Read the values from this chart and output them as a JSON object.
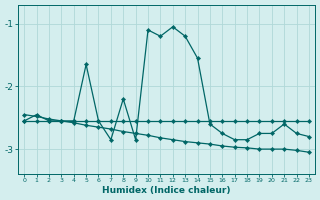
{
  "xlabel": "Humidex (Indice chaleur)",
  "background_color": "#d4eeee",
  "grid_color": "#b0d8d8",
  "line_color": "#006666",
  "xlim": [
    -0.5,
    23.5
  ],
  "ylim": [
    -3.4,
    -0.7
  ],
  "xticks": [
    0,
    1,
    2,
    3,
    4,
    5,
    6,
    7,
    8,
    9,
    10,
    11,
    12,
    13,
    14,
    15,
    16,
    17,
    18,
    19,
    20,
    21,
    22,
    23
  ],
  "yticks": [
    -3,
    -2,
    -1
  ],
  "line1_x": [
    0,
    1,
    2,
    3,
    4,
    5,
    6,
    7,
    8,
    9,
    10,
    11,
    12,
    13,
    14,
    15,
    16,
    17,
    18,
    19,
    20,
    21,
    22,
    23
  ],
  "line1_y": [
    -2.55,
    -2.45,
    -2.55,
    -2.55,
    -2.55,
    -1.65,
    -2.55,
    -2.85,
    -2.2,
    -2.85,
    -1.1,
    -1.2,
    -1.05,
    -1.2,
    -1.55,
    -2.6,
    -2.75,
    -2.85,
    -2.85,
    -2.75,
    -2.75,
    -2.6,
    -2.75,
    -2.8
  ],
  "line2_x": [
    0,
    1,
    2,
    3,
    4,
    5,
    6,
    7,
    8,
    9,
    10,
    11,
    12,
    13,
    14,
    15,
    16,
    17,
    18,
    19,
    20,
    21,
    22,
    23
  ],
  "line2_y": [
    -2.55,
    -2.55,
    -2.55,
    -2.55,
    -2.55,
    -2.55,
    -2.55,
    -2.55,
    -2.55,
    -2.55,
    -2.55,
    -2.55,
    -2.55,
    -2.55,
    -2.55,
    -2.55,
    -2.55,
    -2.55,
    -2.55,
    -2.55,
    -2.55,
    -2.55,
    -2.55,
    -2.55
  ],
  "line3_x": [
    0,
    1,
    2,
    3,
    4,
    5,
    6,
    7,
    8,
    9,
    10,
    11,
    12,
    13,
    14,
    15,
    16,
    17,
    18,
    19,
    20,
    21,
    22,
    23
  ],
  "line3_y": [
    -2.45,
    -2.48,
    -2.52,
    -2.55,
    -2.58,
    -2.62,
    -2.65,
    -2.68,
    -2.72,
    -2.75,
    -2.78,
    -2.82,
    -2.85,
    -2.88,
    -2.9,
    -2.92,
    -2.95,
    -2.97,
    -2.98,
    -3.0,
    -3.0,
    -3.0,
    -3.02,
    -3.05
  ]
}
